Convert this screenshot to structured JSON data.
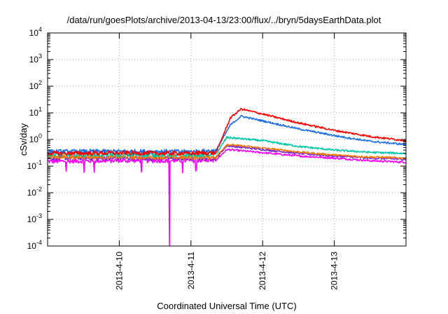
{
  "chart_data": {
    "type": "line",
    "title": "/data/run/goesPlots/archive/2013-04-13/23:00/flux/../bryn/5daysEarthData.plot",
    "xlabel": "Coordinated Universal Time (UTC)",
    "ylabel": "cSv/day",
    "y_scale": "log",
    "ylim": [
      0.0001,
      10000
    ],
    "xlim_days_from_2013_04_09": [
      0,
      5
    ],
    "grid": true,
    "legend": "none",
    "x_tick_labels": [
      {
        "label": "2013-4-10",
        "day": 1
      },
      {
        "label": "2013-4-11",
        "day": 2
      },
      {
        "label": "2013-4-12",
        "day": 3
      },
      {
        "label": "2013-4-13",
        "day": 4
      }
    ],
    "y_tick_labels": [
      {
        "base": "10",
        "exp": "4",
        "value": 10000
      },
      {
        "base": "10",
        "exp": "3",
        "value": 1000
      },
      {
        "base": "10",
        "exp": "2",
        "value": 100
      },
      {
        "base": "10",
        "exp": "1",
        "value": 10
      },
      {
        "base": "10",
        "exp": "0",
        "value": 1
      },
      {
        "base": "10",
        "exp": "-1",
        "value": 0.1
      },
      {
        "base": "10",
        "exp": "-2",
        "value": 0.01
      },
      {
        "base": "10",
        "exp": "-3",
        "value": 0.001
      },
      {
        "base": "10",
        "exp": "-4",
        "value": 0.0001
      }
    ],
    "series": [
      {
        "color": "#ff00ff",
        "x": [
          0,
          1,
          2,
          2.35,
          2.5,
          3,
          3.5,
          4,
          4.5,
          5
        ],
        "y": [
          0.15,
          0.16,
          0.16,
          0.17,
          0.42,
          0.32,
          0.24,
          0.2,
          0.16,
          0.14
        ],
        "dip": {
          "x": 1.7,
          "y": 0.0001
        }
      },
      {
        "color": "#7a2bd6",
        "x": [
          0,
          1,
          2,
          2.35,
          2.5,
          3,
          3.5,
          4,
          4.5,
          5
        ],
        "y": [
          0.2,
          0.2,
          0.19,
          0.2,
          0.58,
          0.42,
          0.3,
          0.24,
          0.2,
          0.18
        ]
      },
      {
        "color": "#f07800",
        "x": [
          0,
          1,
          2,
          2.35,
          2.5,
          3,
          3.5,
          4,
          4.5,
          5
        ],
        "y": [
          0.22,
          0.22,
          0.21,
          0.22,
          0.65,
          0.48,
          0.34,
          0.26,
          0.22,
          0.2
        ]
      },
      {
        "color": "#00c8a8",
        "x": [
          0,
          1,
          2,
          2.35,
          2.5,
          3,
          3.5,
          4,
          4.5,
          5
        ],
        "y": [
          0.27,
          0.27,
          0.26,
          0.28,
          1.2,
          0.9,
          0.55,
          0.4,
          0.33,
          0.3
        ]
      },
      {
        "color": "#1e6fe6",
        "x": [
          0,
          1,
          2,
          2.35,
          2.55,
          2.7,
          3,
          3.5,
          4,
          4.5,
          5
        ],
        "y": [
          0.35,
          0.36,
          0.35,
          0.38,
          3.5,
          7.5,
          5,
          2.5,
          1.4,
          0.85,
          0.65
        ]
      },
      {
        "color": "#ff0000",
        "x": [
          0,
          1,
          2,
          2.35,
          2.55,
          2.7,
          3,
          3.5,
          4,
          4.5,
          5
        ],
        "y": [
          0.3,
          0.31,
          0.3,
          0.32,
          6.5,
          14,
          9,
          4.2,
          2.2,
          1.3,
          0.9
        ]
      }
    ]
  }
}
